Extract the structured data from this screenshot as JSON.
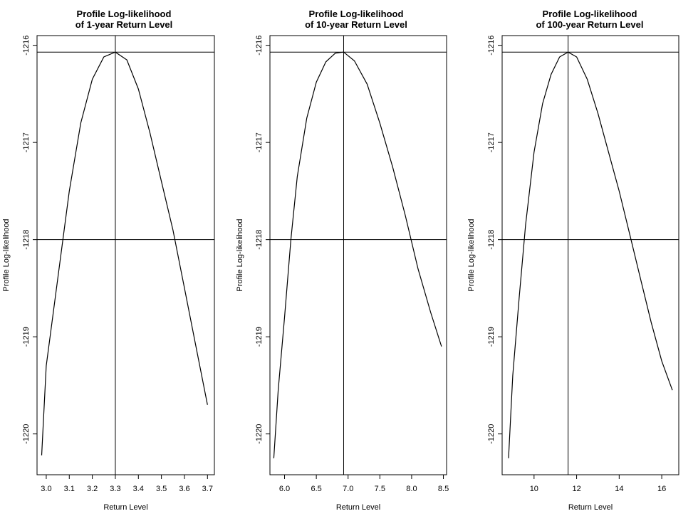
{
  "chart_data": [
    {
      "type": "line",
      "title_line1": "Profile Log-likelihood",
      "title_line2": "of 1-year Return Level",
      "xlabel": "Return Level",
      "ylabel": "Profile Log-likelihood",
      "xlim": [
        2.96,
        3.73
      ],
      "ylim": [
        -1220.42,
        -1215.9
      ],
      "xticks": [
        3.0,
        3.1,
        3.2,
        3.3,
        3.4,
        3.5,
        3.6,
        3.7
      ],
      "xtick_labels": [
        "3.0",
        "3.1",
        "3.2",
        "3.3",
        "3.4",
        "3.5",
        "3.6",
        "3.7"
      ],
      "yticks": [
        -1216,
        -1217,
        -1218,
        -1219,
        -1220
      ],
      "ytick_labels": [
        "-1216",
        "-1217",
        "-1218",
        "-1219",
        "-1220"
      ],
      "hlines": [
        -1216.07,
        -1218.0
      ],
      "vline": 3.3,
      "x": [
        2.98,
        3.0,
        3.05,
        3.1,
        3.15,
        3.2,
        3.25,
        3.3,
        3.35,
        3.4,
        3.45,
        3.5,
        3.55,
        3.6,
        3.65,
        3.7
      ],
      "y": [
        -1220.22,
        -1219.3,
        -1218.4,
        -1217.5,
        -1216.8,
        -1216.35,
        -1216.12,
        -1216.07,
        -1216.15,
        -1216.45,
        -1216.9,
        -1217.4,
        -1217.9,
        -1218.5,
        -1219.1,
        -1219.7
      ]
    },
    {
      "type": "line",
      "title_line1": "Profile Log-likelihood",
      "title_line2": "of 10-year Return Level",
      "xlabel": "Return Level",
      "ylabel": "Profile Log-likelihood",
      "xlim": [
        5.77,
        8.55
      ],
      "ylim": [
        -1220.42,
        -1215.9
      ],
      "xticks": [
        6.0,
        6.5,
        7.0,
        7.5,
        8.0,
        8.5
      ],
      "xtick_labels": [
        "6.0",
        "6.5",
        "7.0",
        "7.5",
        "8.0",
        "8.5"
      ],
      "yticks": [
        -1216,
        -1217,
        -1218,
        -1219,
        -1220
      ],
      "ytick_labels": [
        "-1216",
        "-1217",
        "-1218",
        "-1219",
        "-1220"
      ],
      "hlines": [
        -1216.07,
        -1218.0
      ],
      "vline": 6.93,
      "x": [
        5.83,
        5.9,
        6.0,
        6.1,
        6.2,
        6.35,
        6.5,
        6.65,
        6.8,
        6.93,
        7.1,
        7.3,
        7.5,
        7.7,
        7.9,
        8.1,
        8.3,
        8.47
      ],
      "y": [
        -1220.25,
        -1219.55,
        -1218.8,
        -1218.0,
        -1217.35,
        -1216.75,
        -1216.38,
        -1216.17,
        -1216.08,
        -1216.07,
        -1216.16,
        -1216.4,
        -1216.8,
        -1217.25,
        -1217.75,
        -1218.3,
        -1218.75,
        -1219.1
      ]
    },
    {
      "type": "line",
      "title_line1": "Profile Log-likelihood",
      "title_line2": "of 100-year Return Level",
      "xlabel": "Return Level",
      "ylabel": "Profile Log-likelihood",
      "xlim": [
        8.5,
        16.8
      ],
      "ylim": [
        -1220.42,
        -1215.9
      ],
      "xticks": [
        10,
        12,
        14,
        16
      ],
      "xtick_labels": [
        "10",
        "12",
        "14",
        "16"
      ],
      "yticks": [
        -1216,
        -1217,
        -1218,
        -1219,
        -1220
      ],
      "ytick_labels": [
        "-1216",
        "-1217",
        "-1218",
        "-1219",
        "-1220"
      ],
      "hlines": [
        -1216.07,
        -1218.0
      ],
      "vline": 11.6,
      "x": [
        8.8,
        9.0,
        9.3,
        9.6,
        10.0,
        10.4,
        10.8,
        11.2,
        11.6,
        12.0,
        12.5,
        13.0,
        13.5,
        14.0,
        14.5,
        15.0,
        15.5,
        16.0,
        16.5
      ],
      "y": [
        -1220.25,
        -1219.4,
        -1218.6,
        -1217.85,
        -1217.1,
        -1216.6,
        -1216.3,
        -1216.12,
        -1216.07,
        -1216.12,
        -1216.35,
        -1216.7,
        -1217.1,
        -1217.5,
        -1217.95,
        -1218.4,
        -1218.85,
        -1219.25,
        -1219.55
      ]
    }
  ]
}
